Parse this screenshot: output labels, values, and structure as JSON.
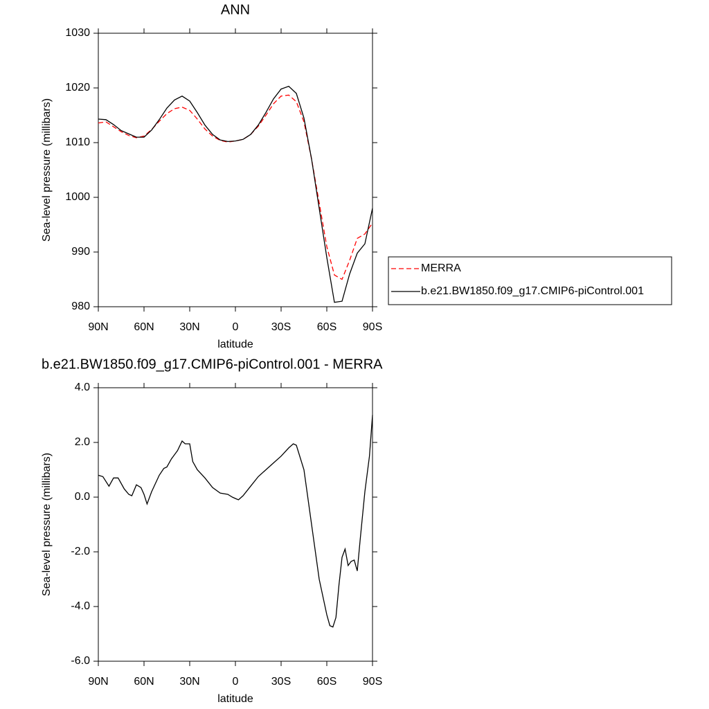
{
  "chart_data": [
    {
      "type": "line",
      "title": "ANN",
      "xlabel": "latitude",
      "ylabel": "Sea-level pressure (millibars)",
      "x": [
        90,
        85,
        80,
        75,
        70,
        65,
        60,
        55,
        50,
        45,
        40,
        35,
        30,
        25,
        20,
        15,
        10,
        5,
        0,
        -5,
        -10,
        -15,
        -20,
        -25,
        -30,
        -35,
        -40,
        -45,
        -50,
        -55,
        -60,
        -65,
        -70,
        -75,
        -80,
        -85,
        -90
      ],
      "series": [
        {
          "name": "MERRA",
          "color": "#ff0000",
          "line_style": "dashed",
          "values": [
            1013.6,
            1013.8,
            1012.9,
            1012.0,
            1011.3,
            1010.9,
            1011.2,
            1012.4,
            1013.9,
            1015.3,
            1016.2,
            1016.5,
            1015.9,
            1014.3,
            1012.5,
            1011.2,
            1010.4,
            1010.1,
            1010.3,
            1010.6,
            1011.5,
            1013.0,
            1015.0,
            1017.1,
            1018.5,
            1018.7,
            1017.5,
            1013.8,
            1007.0,
            999.0,
            991.0,
            985.8,
            985.0,
            988.5,
            992.5,
            993.3,
            995.3
          ]
        },
        {
          "name": "b.e21.BW1850.f09_g17.CMIP6-piControl.001",
          "color": "#000000",
          "line_style": "solid",
          "values": [
            1014.3,
            1014.2,
            1013.3,
            1012.2,
            1011.6,
            1011.0,
            1011.0,
            1012.3,
            1014.2,
            1016.3,
            1017.8,
            1018.5,
            1017.6,
            1015.5,
            1013.2,
            1011.5,
            1010.5,
            1010.2,
            1010.3,
            1010.6,
            1011.5,
            1013.2,
            1015.5,
            1018.0,
            1019.8,
            1020.3,
            1019.0,
            1014.5,
            1007.0,
            998.0,
            989.0,
            980.8,
            981.0,
            986.0,
            989.8,
            991.5,
            998.0
          ]
        }
      ],
      "xlim": [
        90,
        -90
      ],
      "xticks": [
        {
          "value": 90,
          "label": "90N"
        },
        {
          "value": 60,
          "label": "60N"
        },
        {
          "value": 30,
          "label": "30N"
        },
        0,
        {
          "value": -30,
          "label": "30S"
        },
        {
          "value": -60,
          "label": "60S"
        },
        {
          "value": -90,
          "label": "90S"
        }
      ],
      "ylim": [
        980,
        1030
      ],
      "yticks": [
        980,
        990,
        1000,
        1010,
        1020,
        1030
      ],
      "legend": "right"
    },
    {
      "type": "line",
      "title": "b.e21.BW1850.f09_g17.CMIP6-piControl.001 - MERRA",
      "xlabel": "latitude",
      "ylabel": "Sea-level pressure (millibars)",
      "x": [
        90,
        87,
        83,
        80,
        77,
        73,
        70,
        68,
        65,
        62,
        60,
        58,
        55,
        50,
        47,
        45,
        42,
        38,
        35,
        33,
        30,
        28,
        25,
        20,
        15,
        10,
        5,
        2,
        0,
        -2,
        -5,
        -10,
        -15,
        -20,
        -25,
        -30,
        -35,
        -38,
        -40,
        -45,
        -50,
        -55,
        -60,
        -62,
        -64,
        -66,
        -68,
        -70,
        -72,
        -74,
        -76,
        -78,
        -80,
        -82,
        -85,
        -88,
        -90
      ],
      "values": [
        0.8,
        0.75,
        0.4,
        0.7,
        0.7,
        0.3,
        0.1,
        0.05,
        0.45,
        0.35,
        0.1,
        -0.25,
        0.2,
        0.8,
        1.05,
        1.1,
        1.4,
        1.7,
        2.05,
        1.95,
        1.95,
        1.3,
        1.0,
        0.7,
        0.35,
        0.15,
        0.1,
        0.0,
        -0.05,
        -0.1,
        0.05,
        0.4,
        0.75,
        1.0,
        1.25,
        1.5,
        1.8,
        1.95,
        1.9,
        1.0,
        -1.0,
        -3.0,
        -4.3,
        -4.7,
        -4.75,
        -4.4,
        -3.2,
        -2.2,
        -1.9,
        -2.5,
        -2.35,
        -2.3,
        -2.7,
        -1.5,
        0.2,
        1.5,
        3.0
      ],
      "color": "#000000",
      "xlim": [
        90,
        -90
      ],
      "xticks": [
        {
          "value": 90,
          "label": "90N"
        },
        {
          "value": 60,
          "label": "60N"
        },
        {
          "value": 30,
          "label": "30N"
        },
        0,
        {
          "value": -30,
          "label": "30S"
        },
        {
          "value": -60,
          "label": "60S"
        },
        {
          "value": -90,
          "label": "90S"
        }
      ],
      "ylim": [
        -6,
        4
      ],
      "yticks": [
        {
          "value": -6,
          "label": "-6.0"
        },
        {
          "value": -4,
          "label": "-4.0"
        },
        {
          "value": -2,
          "label": "-2.0"
        },
        {
          "value": 0,
          "label": "0.0"
        },
        {
          "value": 2,
          "label": "2.0"
        },
        {
          "value": 4,
          "label": "4.0"
        }
      ]
    }
  ]
}
